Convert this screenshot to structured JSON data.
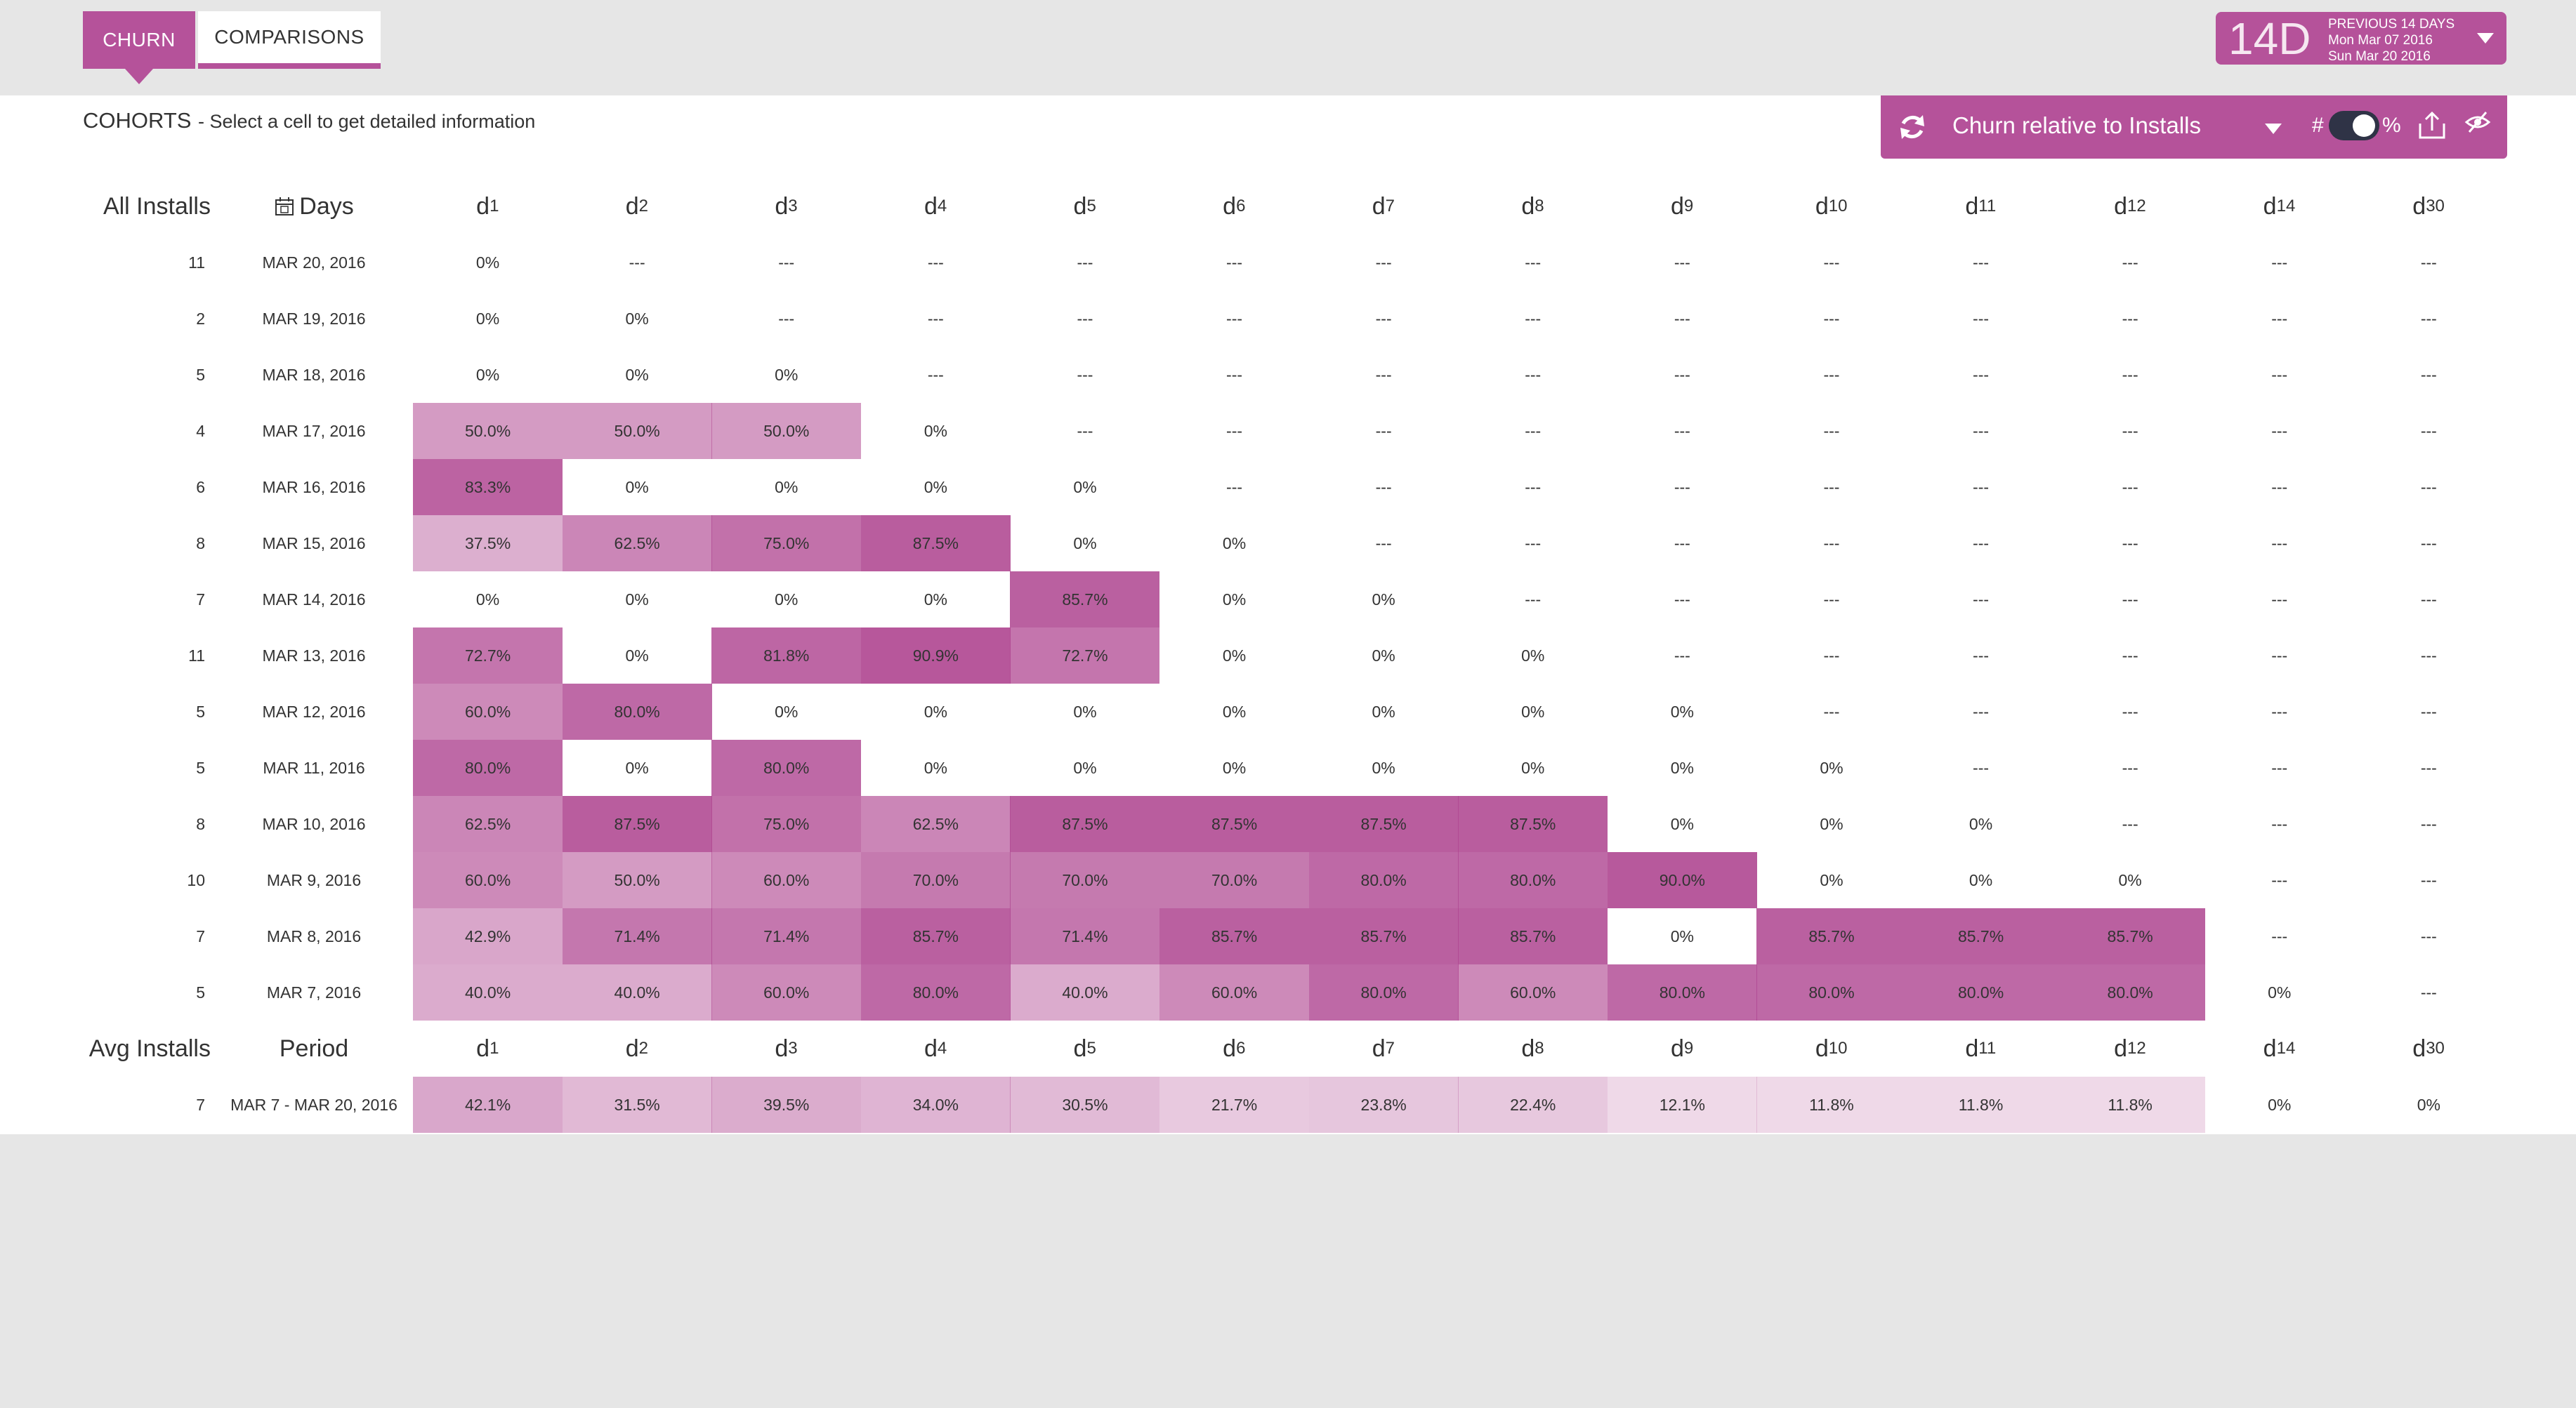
{
  "tabs": [
    {
      "label": "CHURN",
      "active": true
    },
    {
      "label": "COMPARISONS",
      "active": false
    }
  ],
  "date_range": {
    "short": "14D",
    "label": "PREVIOUS 14 DAYS",
    "start": "Mon Mar 07 2016",
    "end": "Sun Mar 20 2016"
  },
  "cohorts": {
    "title": "COHORTS",
    "subtitle": "- Select a cell to get detailed information"
  },
  "toolbar": {
    "metric": "Churn relative to Installs",
    "hash": "#",
    "percent": "%"
  },
  "header": {
    "installs": "All Installs",
    "days": "Days",
    "day_labels": [
      {
        "d": "d",
        "n": "1"
      },
      {
        "d": "d",
        "n": "2"
      },
      {
        "d": "d",
        "n": "3"
      },
      {
        "d": "d",
        "n": "4"
      },
      {
        "d": "d",
        "n": "5"
      },
      {
        "d": "d",
        "n": "6"
      },
      {
        "d": "d",
        "n": "7"
      },
      {
        "d": "d",
        "n": "8"
      },
      {
        "d": "d",
        "n": "9"
      },
      {
        "d": "d",
        "n": "10"
      },
      {
        "d": "d",
        "n": "11"
      },
      {
        "d": "d",
        "n": "12"
      },
      {
        "d": "d",
        "n": "14"
      },
      {
        "d": "d",
        "n": "30"
      }
    ]
  },
  "colors": {
    "accent": "#b5529a",
    "cell_base": "#b04892"
  },
  "rows": [
    {
      "installs": "11",
      "date": "MAR 20, 2016",
      "values": [
        "0%",
        "---",
        "---",
        "---",
        "---",
        "---",
        "---",
        "---",
        "---",
        "---",
        "---",
        "---",
        "---",
        "---"
      ]
    },
    {
      "installs": "2",
      "date": "MAR 19, 2016",
      "values": [
        "0%",
        "0%",
        "---",
        "---",
        "---",
        "---",
        "---",
        "---",
        "---",
        "---",
        "---",
        "---",
        "---",
        "---"
      ]
    },
    {
      "installs": "5",
      "date": "MAR 18, 2016",
      "values": [
        "0%",
        "0%",
        "0%",
        "---",
        "---",
        "---",
        "---",
        "---",
        "---",
        "---",
        "---",
        "---",
        "---",
        "---"
      ]
    },
    {
      "installs": "4",
      "date": "MAR 17, 2016",
      "values": [
        "50.0%",
        "50.0%",
        "50.0%",
        "0%",
        "---",
        "---",
        "---",
        "---",
        "---",
        "---",
        "---",
        "---",
        "---",
        "---"
      ]
    },
    {
      "installs": "6",
      "date": "MAR 16, 2016",
      "values": [
        "83.3%",
        "0%",
        "0%",
        "0%",
        "0%",
        "---",
        "---",
        "---",
        "---",
        "---",
        "---",
        "---",
        "---",
        "---"
      ]
    },
    {
      "installs": "8",
      "date": "MAR 15, 2016",
      "values": [
        "37.5%",
        "62.5%",
        "75.0%",
        "87.5%",
        "0%",
        "0%",
        "---",
        "---",
        "---",
        "---",
        "---",
        "---",
        "---",
        "---"
      ]
    },
    {
      "installs": "7",
      "date": "MAR 14, 2016",
      "values": [
        "0%",
        "0%",
        "0%",
        "0%",
        "85.7%",
        "0%",
        "0%",
        "---",
        "---",
        "---",
        "---",
        "---",
        "---",
        "---"
      ]
    },
    {
      "installs": "11",
      "date": "MAR 13, 2016",
      "values": [
        "72.7%",
        "0%",
        "81.8%",
        "90.9%",
        "72.7%",
        "0%",
        "0%",
        "0%",
        "---",
        "---",
        "---",
        "---",
        "---",
        "---"
      ]
    },
    {
      "installs": "5",
      "date": "MAR 12, 2016",
      "values": [
        "60.0%",
        "80.0%",
        "0%",
        "0%",
        "0%",
        "0%",
        "0%",
        "0%",
        "0%",
        "---",
        "---",
        "---",
        "---",
        "---"
      ]
    },
    {
      "installs": "5",
      "date": "MAR 11, 2016",
      "values": [
        "80.0%",
        "0%",
        "80.0%",
        "0%",
        "0%",
        "0%",
        "0%",
        "0%",
        "0%",
        "0%",
        "---",
        "---",
        "---",
        "---"
      ]
    },
    {
      "installs": "8",
      "date": "MAR 10, 2016",
      "values": [
        "62.5%",
        "87.5%",
        "75.0%",
        "62.5%",
        "87.5%",
        "87.5%",
        "87.5%",
        "87.5%",
        "0%",
        "0%",
        "0%",
        "---",
        "---",
        "---"
      ]
    },
    {
      "installs": "10",
      "date": "MAR 9, 2016",
      "values": [
        "60.0%",
        "50.0%",
        "60.0%",
        "70.0%",
        "70.0%",
        "70.0%",
        "80.0%",
        "80.0%",
        "90.0%",
        "0%",
        "0%",
        "0%",
        "---",
        "---"
      ]
    },
    {
      "installs": "7",
      "date": "MAR 8, 2016",
      "values": [
        "42.9%",
        "71.4%",
        "71.4%",
        "85.7%",
        "71.4%",
        "85.7%",
        "85.7%",
        "85.7%",
        "0%",
        "85.7%",
        "85.7%",
        "85.7%",
        "---",
        "---"
      ]
    },
    {
      "installs": "5",
      "date": "MAR 7, 2016",
      "values": [
        "40.0%",
        "40.0%",
        "60.0%",
        "80.0%",
        "40.0%",
        "60.0%",
        "80.0%",
        "60.0%",
        "80.0%",
        "80.0%",
        "80.0%",
        "80.0%",
        "0%",
        "---"
      ]
    }
  ],
  "avg_header": {
    "installs": "Avg Installs",
    "period": "Period"
  },
  "avg_row": {
    "installs": "7",
    "period": "MAR 7 - MAR 20, 2016",
    "values": [
      "42.1%",
      "31.5%",
      "39.5%",
      "34.0%",
      "30.5%",
      "21.7%",
      "23.8%",
      "22.4%",
      "12.1%",
      "11.8%",
      "11.8%",
      "11.8%",
      "0%",
      "0%"
    ]
  }
}
